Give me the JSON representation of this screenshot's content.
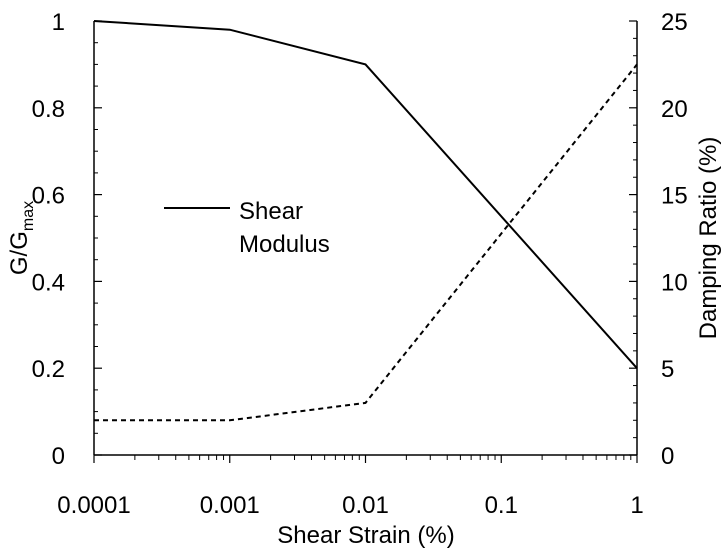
{
  "chart_data": {
    "type": "line",
    "x_scale": "log",
    "xlabel": "Shear Strain (%)",
    "ylabel_left": {
      "main": "G/G",
      "sub": "max"
    },
    "ylabel_right": "Damping Ratio (%)",
    "xlim": [
      0.0001,
      1
    ],
    "ylim_left": [
      0,
      1
    ],
    "ylim_right": [
      0,
      25
    ],
    "x_ticks": [
      {
        "value": 0.0001,
        "label": "0.0001"
      },
      {
        "value": 0.001,
        "label": "0.001"
      },
      {
        "value": 0.01,
        "label": "0.01"
      },
      {
        "value": 0.1,
        "label": "0.1"
      },
      {
        "value": 1,
        "label": "1"
      }
    ],
    "y_ticks_left": [
      {
        "value": 0,
        "label": "0"
      },
      {
        "value": 0.2,
        "label": "0.2"
      },
      {
        "value": 0.4,
        "label": "0.4"
      },
      {
        "value": 0.6,
        "label": "0.6"
      },
      {
        "value": 0.8,
        "label": "0.8"
      },
      {
        "value": 1,
        "label": "1"
      }
    ],
    "y_ticks_right": [
      {
        "value": 0,
        "label": "0"
      },
      {
        "value": 5,
        "label": "5"
      },
      {
        "value": 10,
        "label": "10"
      },
      {
        "value": 15,
        "label": "15"
      },
      {
        "value": 20,
        "label": "20"
      },
      {
        "value": 25,
        "label": "25"
      }
    ],
    "grid": false,
    "legend": {
      "placement": "center-left",
      "entries": [
        {
          "series": "shear-modulus",
          "lines": [
            "Shear",
            "Modulus"
          ]
        }
      ]
    },
    "series": [
      {
        "id": "shear-modulus",
        "axis": "left",
        "style": "solid",
        "color": "#000000",
        "x": [
          0.0001,
          0.001,
          0.01,
          1
        ],
        "y": [
          1.0,
          0.98,
          0.9,
          0.2
        ]
      },
      {
        "id": "damping-ratio",
        "axis": "right",
        "style": "dashed",
        "color": "#000000",
        "x": [
          0.0001,
          0.001,
          0.01,
          1
        ],
        "y": [
          2,
          2,
          3,
          22.5
        ]
      }
    ]
  }
}
